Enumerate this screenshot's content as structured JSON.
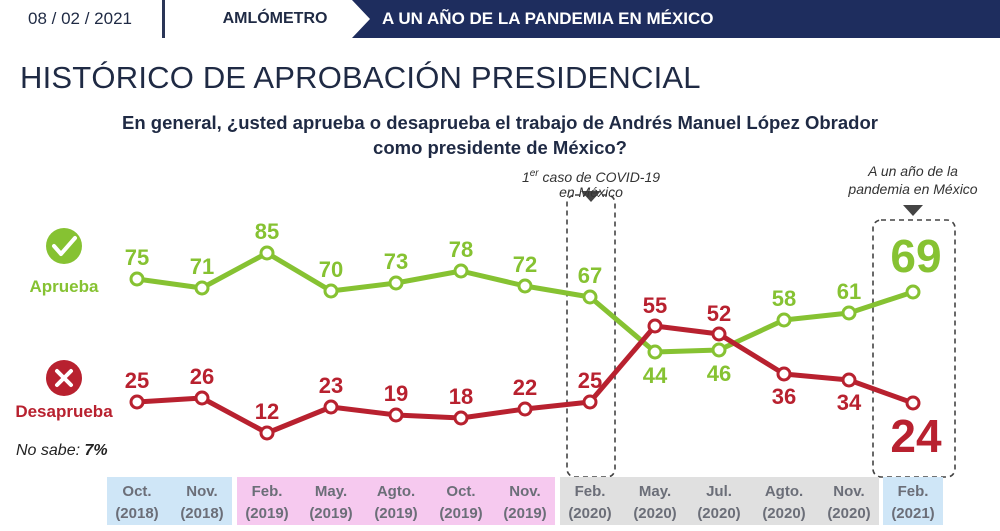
{
  "header": {
    "date": "08 / 02 / 2021",
    "brand": "AMLÓMETRO",
    "banner": "A UN AÑO DE LA PANDEMIA EN MÉXICO"
  },
  "title": "HISTÓRICO DE APROBACIÓN PRESIDENCIAL",
  "question_line1": "En general, ¿usted aprueba o desaprueba el trabajo de Andrés Manuel López Obrador",
  "question_line2": "como presidente de México?",
  "legend": {
    "approve": "Aprueba",
    "disapprove": "Desaprueba",
    "no_sabe_label": "No sabe:",
    "no_sabe_value": "7%"
  },
  "annotations": {
    "covid_sup": "er",
    "covid_pre": "1",
    "covid_line1": " caso de COVID-19",
    "covid_line2": "en México",
    "pandemic_line1": "A un año de la",
    "pandemic_line2": "pandemia en México"
  },
  "colors": {
    "approve": "#86c232",
    "disapprove": "#b8212f",
    "label_blue": "#cfe6f7",
    "label_pink": "#f6c9ef",
    "label_gray": "#e0e0e0"
  },
  "chart_data": {
    "type": "line",
    "categories": [
      [
        "Oct.",
        "(2018)"
      ],
      [
        "Nov.",
        "(2018)"
      ],
      [
        "Feb.",
        "(2019)"
      ],
      [
        "May.",
        "(2019)"
      ],
      [
        "Agto.",
        "(2019)"
      ],
      [
        "Oct.",
        "(2019)"
      ],
      [
        "Nov.",
        "(2019)"
      ],
      [
        "Feb.",
        "(2020)"
      ],
      [
        "May.",
        "(2020)"
      ],
      [
        "Jul.",
        "(2020)"
      ],
      [
        "Agto.",
        "(2020)"
      ],
      [
        "Nov.",
        "(2020)"
      ],
      [
        "Feb.",
        "(2021)"
      ]
    ],
    "category_groups": [
      "blue",
      "blue",
      "pink",
      "pink",
      "pink",
      "pink",
      "pink",
      "gray",
      "gray",
      "gray",
      "gray",
      "gray",
      "blue"
    ],
    "series": [
      {
        "name": "Aprueba",
        "values": [
          75,
          71,
          85,
          70,
          73,
          78,
          72,
          67,
          44,
          46,
          58,
          61,
          69
        ]
      },
      {
        "name": "Desaprueba",
        "values": [
          25,
          26,
          12,
          23,
          19,
          18,
          22,
          25,
          55,
          52,
          36,
          34,
          24
        ]
      }
    ],
    "highlighted": [
      7,
      12
    ]
  }
}
